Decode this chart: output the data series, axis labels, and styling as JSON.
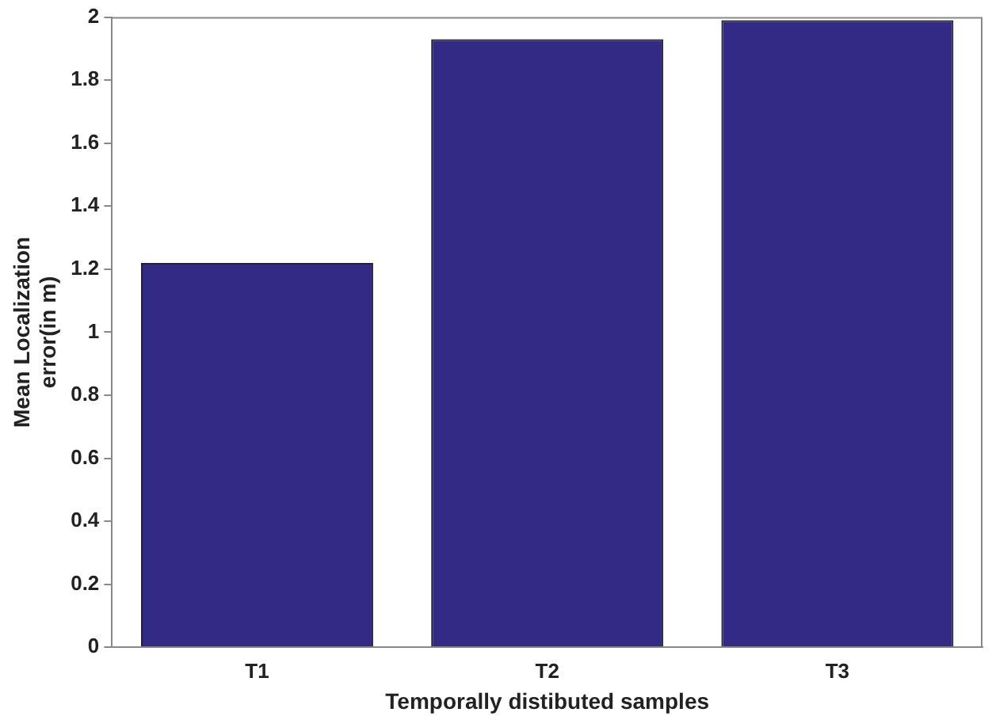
{
  "chart_data": {
    "type": "bar",
    "xlabel": "Temporally distibuted samples",
    "ylabel": "Mean Localization\nerror(in m)",
    "categories": [
      "T1",
      "T2",
      "T3"
    ],
    "values": [
      1.22,
      1.93,
      1.99
    ],
    "color": "#332a85",
    "ylim": [
      0,
      2
    ],
    "yticks": [
      0,
      0.2,
      0.4,
      0.6,
      0.8,
      1,
      1.2,
      1.4,
      1.6,
      1.8,
      2
    ],
    "grid": false,
    "legend": false
  }
}
